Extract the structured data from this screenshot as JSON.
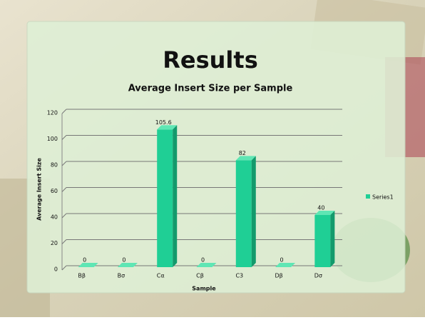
{
  "slide_title": "Results",
  "chart_data": {
    "type": "bar",
    "title": "Average Insert Size per Sample",
    "x_label": "Sample",
    "y_label": "Average Insert Size",
    "categories": [
      "Bβ",
      "Bσ",
      "Cα",
      "Cβ",
      "C3",
      "Dβ",
      "Dσ"
    ],
    "series": [
      {
        "name": "Series1",
        "color": "#1fcf95",
        "values": [
          0,
          0,
          105.6,
          0,
          82,
          0,
          40
        ]
      }
    ],
    "ylim": [
      0,
      120
    ],
    "yticks": [
      0,
      20,
      40,
      60,
      80,
      100,
      120
    ],
    "grid": true,
    "legend": "right"
  }
}
